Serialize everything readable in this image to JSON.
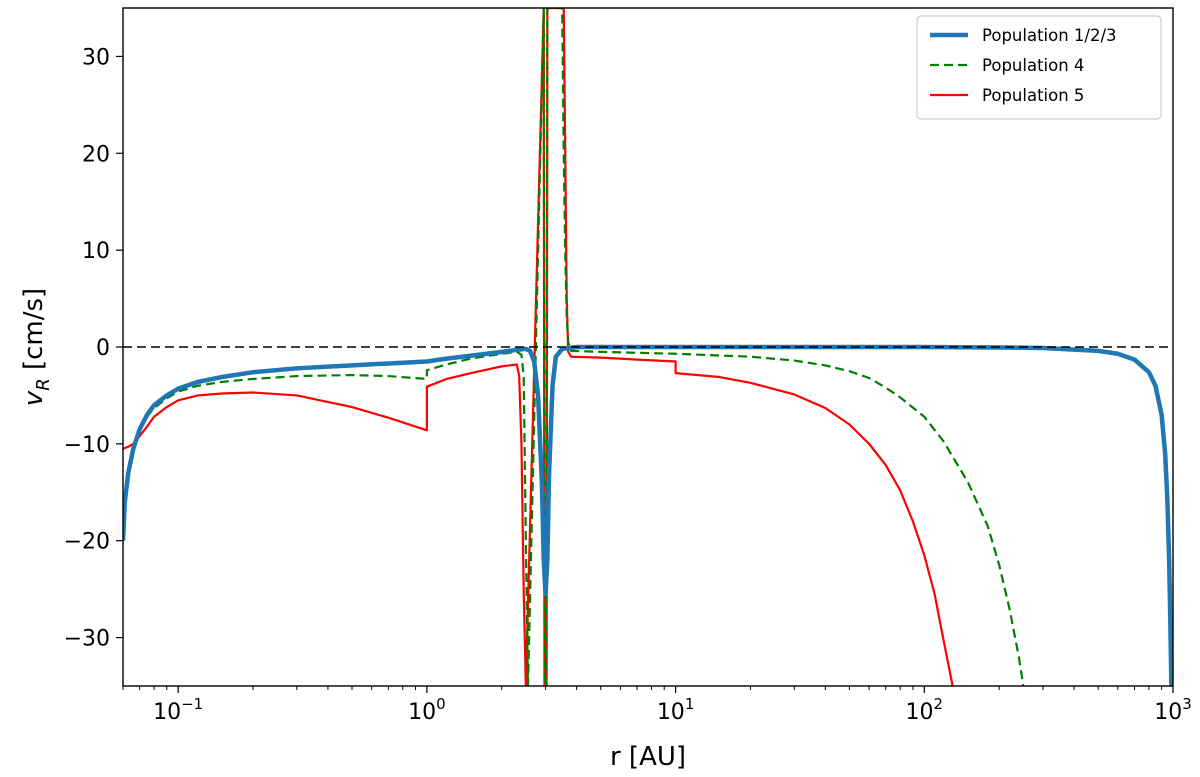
{
  "chart_data": {
    "type": "line",
    "xlabel": "r [AU]",
    "ylabel_main": "v",
    "ylabel_sub": "R",
    "ylabel_units": " [cm/s]",
    "xscale": "log",
    "xlim": [
      0.06,
      1000
    ],
    "ylim": [
      -35,
      35
    ],
    "xticks": [
      {
        "value": 0.1,
        "base": "10",
        "exp": "−1"
      },
      {
        "value": 1,
        "base": "10",
        "exp": "0"
      },
      {
        "value": 10,
        "base": "10",
        "exp": "1"
      },
      {
        "value": 100,
        "base": "10",
        "exp": "2"
      },
      {
        "value": 1000,
        "base": "10",
        "exp": "3"
      }
    ],
    "yticks": [
      {
        "value": 30,
        "label": "30"
      },
      {
        "value": 20,
        "label": "20"
      },
      {
        "value": 10,
        "label": "10"
      },
      {
        "value": 0,
        "label": "0"
      },
      {
        "value": -10,
        "label": "−10"
      },
      {
        "value": -20,
        "label": "−20"
      },
      {
        "value": -30,
        "label": "−30"
      }
    ],
    "reference_line": {
      "y": 0,
      "style": "dashed",
      "color": "#000000"
    },
    "legend_position": "top-right",
    "grid": false,
    "series": [
      {
        "name": "Population 1/2/3",
        "color": "#1f77b4",
        "style": "solid-thick",
        "points": [
          [
            0.06,
            -20
          ],
          [
            0.061,
            -16
          ],
          [
            0.063,
            -13
          ],
          [
            0.066,
            -10.5
          ],
          [
            0.07,
            -8.5
          ],
          [
            0.075,
            -7
          ],
          [
            0.08,
            -6
          ],
          [
            0.09,
            -5
          ],
          [
            0.1,
            -4.3
          ],
          [
            0.12,
            -3.6
          ],
          [
            0.15,
            -3.1
          ],
          [
            0.2,
            -2.6
          ],
          [
            0.3,
            -2.2
          ],
          [
            0.5,
            -1.9
          ],
          [
            0.7,
            -1.7
          ],
          [
            1.0,
            -1.5
          ],
          [
            1.2,
            -1.2
          ],
          [
            1.5,
            -0.9
          ],
          [
            2.0,
            -0.5
          ],
          [
            2.3,
            -0.3
          ],
          [
            2.5,
            -0.2
          ],
          [
            2.6,
            -0.4
          ],
          [
            2.7,
            -1.5
          ],
          [
            2.8,
            -5
          ],
          [
            2.9,
            -14
          ],
          [
            2.95,
            -22
          ],
          [
            3.0,
            -25.5
          ],
          [
            3.05,
            -22
          ],
          [
            3.1,
            -13
          ],
          [
            3.2,
            -4
          ],
          [
            3.3,
            -1
          ],
          [
            3.5,
            -0.2
          ],
          [
            4,
            0
          ],
          [
            10,
            0
          ],
          [
            50,
            0
          ],
          [
            100,
            0
          ],
          [
            200,
            -0.05
          ],
          [
            300,
            -0.1
          ],
          [
            500,
            -0.4
          ],
          [
            600,
            -0.7
          ],
          [
            700,
            -1.3
          ],
          [
            800,
            -2.6
          ],
          [
            850,
            -4
          ],
          [
            900,
            -7
          ],
          [
            930,
            -11
          ],
          [
            950,
            -16
          ],
          [
            965,
            -22
          ],
          [
            975,
            -28
          ],
          [
            985,
            -35
          ]
        ]
      },
      {
        "name": "Population 4",
        "color": "#008000",
        "style": "dashed",
        "points": [
          [
            0.06,
            -17
          ],
          [
            0.063,
            -13
          ],
          [
            0.066,
            -10.5
          ],
          [
            0.07,
            -8.5
          ],
          [
            0.075,
            -7.2
          ],
          [
            0.08,
            -6.3
          ],
          [
            0.09,
            -5.3
          ],
          [
            0.1,
            -4.6
          ],
          [
            0.12,
            -4.0
          ],
          [
            0.15,
            -3.6
          ],
          [
            0.2,
            -3.3
          ],
          [
            0.3,
            -3.0
          ],
          [
            0.5,
            -2.9
          ],
          [
            0.7,
            -3.0
          ],
          [
            1.0,
            -3.3
          ],
          [
            1.0,
            -2.4
          ],
          [
            1.2,
            -1.8
          ],
          [
            1.5,
            -1.2
          ],
          [
            2.0,
            -0.7
          ],
          [
            2.3,
            -0.5
          ],
          [
            2.4,
            -0.8
          ],
          [
            2.45,
            -3
          ],
          [
            2.5,
            -20
          ],
          [
            2.55,
            -35
          ],
          [
            2.95,
            35
          ],
          [
            2.98,
            -35
          ],
          [
            3.02,
            -35
          ],
          [
            3.05,
            35
          ],
          [
            3.5,
            35
          ],
          [
            3.55,
            20
          ],
          [
            3.6,
            10
          ],
          [
            3.65,
            3
          ],
          [
            3.7,
            0.5
          ],
          [
            3.8,
            -0.4
          ],
          [
            5,
            -0.5
          ],
          [
            10,
            -0.7
          ],
          [
            20,
            -1.0
          ],
          [
            30,
            -1.4
          ],
          [
            40,
            -1.9
          ],
          [
            50,
            -2.5
          ],
          [
            60,
            -3.2
          ],
          [
            70,
            -4.2
          ],
          [
            80,
            -5.2
          ],
          [
            100,
            -7.2
          ],
          [
            120,
            -9.8
          ],
          [
            150,
            -14
          ],
          [
            180,
            -18.5
          ],
          [
            200,
            -22.5
          ],
          [
            220,
            -27
          ],
          [
            240,
            -32
          ],
          [
            250,
            -35
          ]
        ]
      },
      {
        "name": "Population 5",
        "color": "#ff0000",
        "style": "solid",
        "points": [
          [
            0.06,
            -10.5
          ],
          [
            0.063,
            -10.3
          ],
          [
            0.066,
            -10
          ],
          [
            0.07,
            -9.2
          ],
          [
            0.075,
            -8.2
          ],
          [
            0.08,
            -7.2
          ],
          [
            0.09,
            -6.2
          ],
          [
            0.1,
            -5.5
          ],
          [
            0.12,
            -5.0
          ],
          [
            0.15,
            -4.8
          ],
          [
            0.2,
            -4.7
          ],
          [
            0.3,
            -5.0
          ],
          [
            0.5,
            -6.2
          ],
          [
            0.7,
            -7.3
          ],
          [
            1.0,
            -8.6
          ],
          [
            1.0,
            -4.1
          ],
          [
            1.2,
            -3.3
          ],
          [
            1.5,
            -2.7
          ],
          [
            2.0,
            -2.0
          ],
          [
            2.3,
            -1.8
          ],
          [
            2.35,
            -3
          ],
          [
            2.4,
            -10
          ],
          [
            2.45,
            -25
          ],
          [
            2.5,
            -35
          ],
          [
            2.95,
            35
          ],
          [
            2.97,
            -35
          ],
          [
            3.03,
            -35
          ],
          [
            3.05,
            35
          ],
          [
            3.55,
            35
          ],
          [
            3.6,
            20
          ],
          [
            3.65,
            5
          ],
          [
            3.7,
            -0.5
          ],
          [
            3.8,
            -1.0
          ],
          [
            5,
            -1.1
          ],
          [
            7,
            -1.3
          ],
          [
            10,
            -1.5
          ],
          [
            10,
            -2.7
          ],
          [
            15,
            -3.1
          ],
          [
            20,
            -3.7
          ],
          [
            30,
            -4.9
          ],
          [
            40,
            -6.3
          ],
          [
            50,
            -8.0
          ],
          [
            60,
            -10
          ],
          [
            70,
            -12.2
          ],
          [
            80,
            -14.8
          ],
          [
            90,
            -18
          ],
          [
            100,
            -21.5
          ],
          [
            110,
            -25.5
          ],
          [
            120,
            -30.5
          ],
          [
            130,
            -35
          ]
        ]
      }
    ]
  }
}
